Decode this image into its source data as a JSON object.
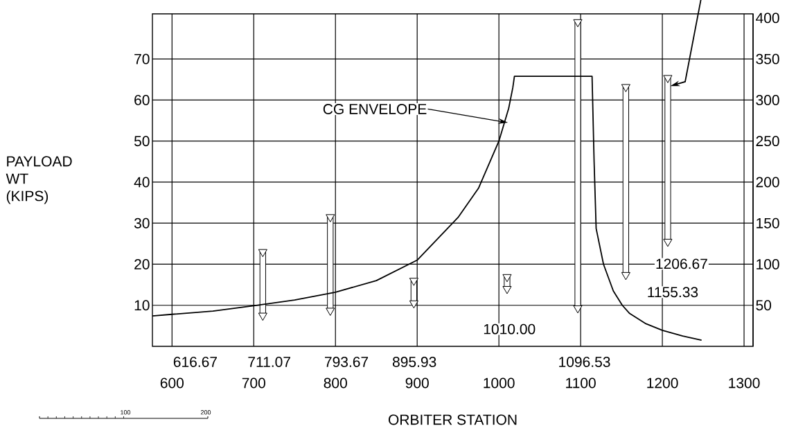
{
  "chart_data": {
    "type": "bar",
    "xlabel": "ORBITER STATION",
    "ylabel": "PAYLOAD WT (KIPS)",
    "xlim": [
      576,
      1311
    ],
    "xticks": [
      600,
      700,
      800,
      900,
      1000,
      1100,
      1200,
      1300
    ],
    "ylim": [
      0,
      81
    ],
    "yticks": [
      10,
      20,
      30,
      40,
      50,
      60,
      70
    ],
    "y2lim": [
      0,
      405
    ],
    "y2ticks": [
      50,
      100,
      150,
      200,
      250,
      300,
      350,
      400
    ],
    "grid": true,
    "annotations": [
      {
        "text": "CG ENVELOPE",
        "x": 1011,
        "y": 54.5
      },
      "616.67",
      "711.07",
      "793.67",
      "895.93",
      "1010.00",
      "1096.53",
      "1155.33",
      "1206.67",
      "100",
      "200"
    ],
    "series": [
      {
        "color": "#000000",
        "x": [
          711.07,
          793.67,
          895.93,
          1010.0,
          1096.53,
          1155.33,
          1206.67
        ],
        "base": [
          7.5,
          8.7,
          10.5,
          14,
          9.3,
          17.4,
          25.5
        ],
        "values": [
          15.5,
          22.8,
          5.5,
          2.9,
          69.7,
          45.8,
          39.9
        ]
      },
      {
        "type": "line",
        "color": "#000000",
        "x": [
          576,
          600,
          650,
          700,
          750,
          800,
          850,
          900,
          950,
          975,
          1000,
          1012,
          1017,
          1019,
          1114,
          1116.5,
          1119,
          1128,
          1140,
          1151,
          1160,
          1180,
          1200,
          1225,
          1248
        ],
        "values": [
          7.4,
          7.8,
          8.6,
          9.9,
          11.3,
          13.2,
          16,
          21,
          31.4,
          38.5,
          50,
          58,
          63,
          65.8,
          65.8,
          45,
          28.7,
          20,
          13.5,
          10,
          8,
          5.5,
          3.9,
          2.5,
          1.5
        ]
      },
      {
        "type": "scatter",
        "color": "#000000",
        "marker": "triangle",
        "x": [
          711.07,
          793.67,
          895.93,
          1010.0,
          1096.53,
          1155.33,
          1206.67
        ],
        "values": [
          23,
          31.5,
          16,
          16.9,
          79,
          63.2,
          65.4
        ]
      },
      {
        "type": "scatter",
        "color": "#000000",
        "marker": "triangle",
        "x": [
          711.07,
          793.67,
          895.93,
          1010.0,
          1096.53,
          1155.33,
          1206.67
        ],
        "values": [
          7.5,
          8.7,
          10.5,
          14,
          9.3,
          17.4,
          25.5
        ]
      }
    ]
  }
}
